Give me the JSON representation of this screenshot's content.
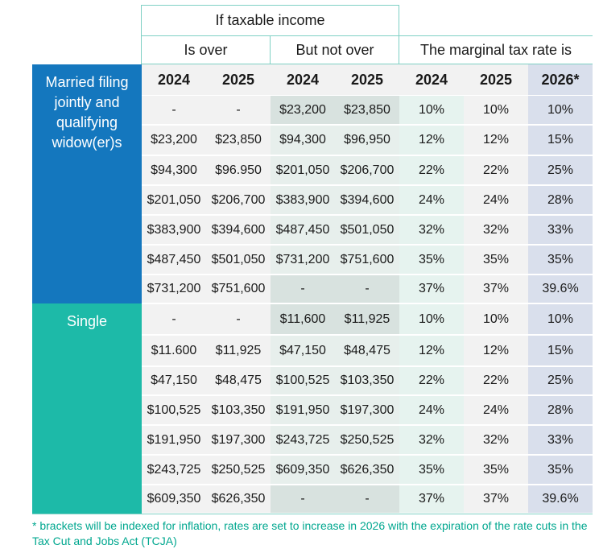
{
  "header": {
    "top": "If taxable income",
    "is_over": "Is over",
    "but_not_over": "But not over",
    "rate_is": "The marginal tax rate is"
  },
  "years": [
    "2024",
    "2025",
    "2024",
    "2025",
    "2024",
    "2025",
    "2026*"
  ],
  "groups": [
    {
      "label": "Married filing jointly and qualifying widow(er)s",
      "color": "#1477be",
      "rows": [
        [
          "-",
          "-",
          "$23,200",
          "$23,850",
          "10%",
          "10%",
          "10%"
        ],
        [
          "$23,200",
          "$23,850",
          "$94,300",
          "$96,950",
          "12%",
          "12%",
          "15%"
        ],
        [
          "$94,300",
          "$96.950",
          "$201,050",
          "$206,700",
          "22%",
          "22%",
          "25%"
        ],
        [
          "$201,050",
          "$206,700",
          "$383,900",
          "$394,600",
          "24%",
          "24%",
          "28%"
        ],
        [
          "$383,900",
          "$394,600",
          "$487,450",
          "$501,050",
          "32%",
          "32%",
          "33%"
        ],
        [
          "$487,450",
          "$501,050",
          "$731,200",
          "$751,600",
          "35%",
          "35%",
          "35%"
        ],
        [
          "$731,200",
          "$751,600",
          "-",
          "-",
          "37%",
          "37%",
          "39.6%"
        ]
      ]
    },
    {
      "label": "Single",
      "color": "#1dbaa8",
      "rows": [
        [
          "-",
          "-",
          "$11,600",
          "$11,925",
          "10%",
          "10%",
          "10%"
        ],
        [
          "$11.600",
          "$11,925",
          "$47,150",
          "$48,475",
          "12%",
          "12%",
          "15%"
        ],
        [
          "$47,150",
          "$48,475",
          "$100,525",
          "$103,350",
          "22%",
          "22%",
          "25%"
        ],
        [
          "$100,525",
          "$103,350",
          "$191,950",
          "$197,300",
          "24%",
          "24%",
          "28%"
        ],
        [
          "$191,950",
          "$197,300",
          "$243,725",
          "$250,525",
          "32%",
          "32%",
          "33%"
        ],
        [
          "$243,725",
          "$250,525",
          "$609,350",
          "$626,350",
          "35%",
          "35%",
          "35%"
        ],
        [
          "$609,350",
          "$626,350",
          "-",
          "-",
          "37%",
          "37%",
          "39.6%"
        ]
      ]
    }
  ],
  "footnote": "* brackets will be indexed for inflation, rates are set to increase in 2026 with the expiration of the rate cuts in the Tax Cut and Jobs Act (TCJA)",
  "colors": {
    "married_band": "#1477be",
    "single_band": "#1dbaa8",
    "accent_line": "#7fd0c4",
    "footnote": "#00a78f"
  }
}
